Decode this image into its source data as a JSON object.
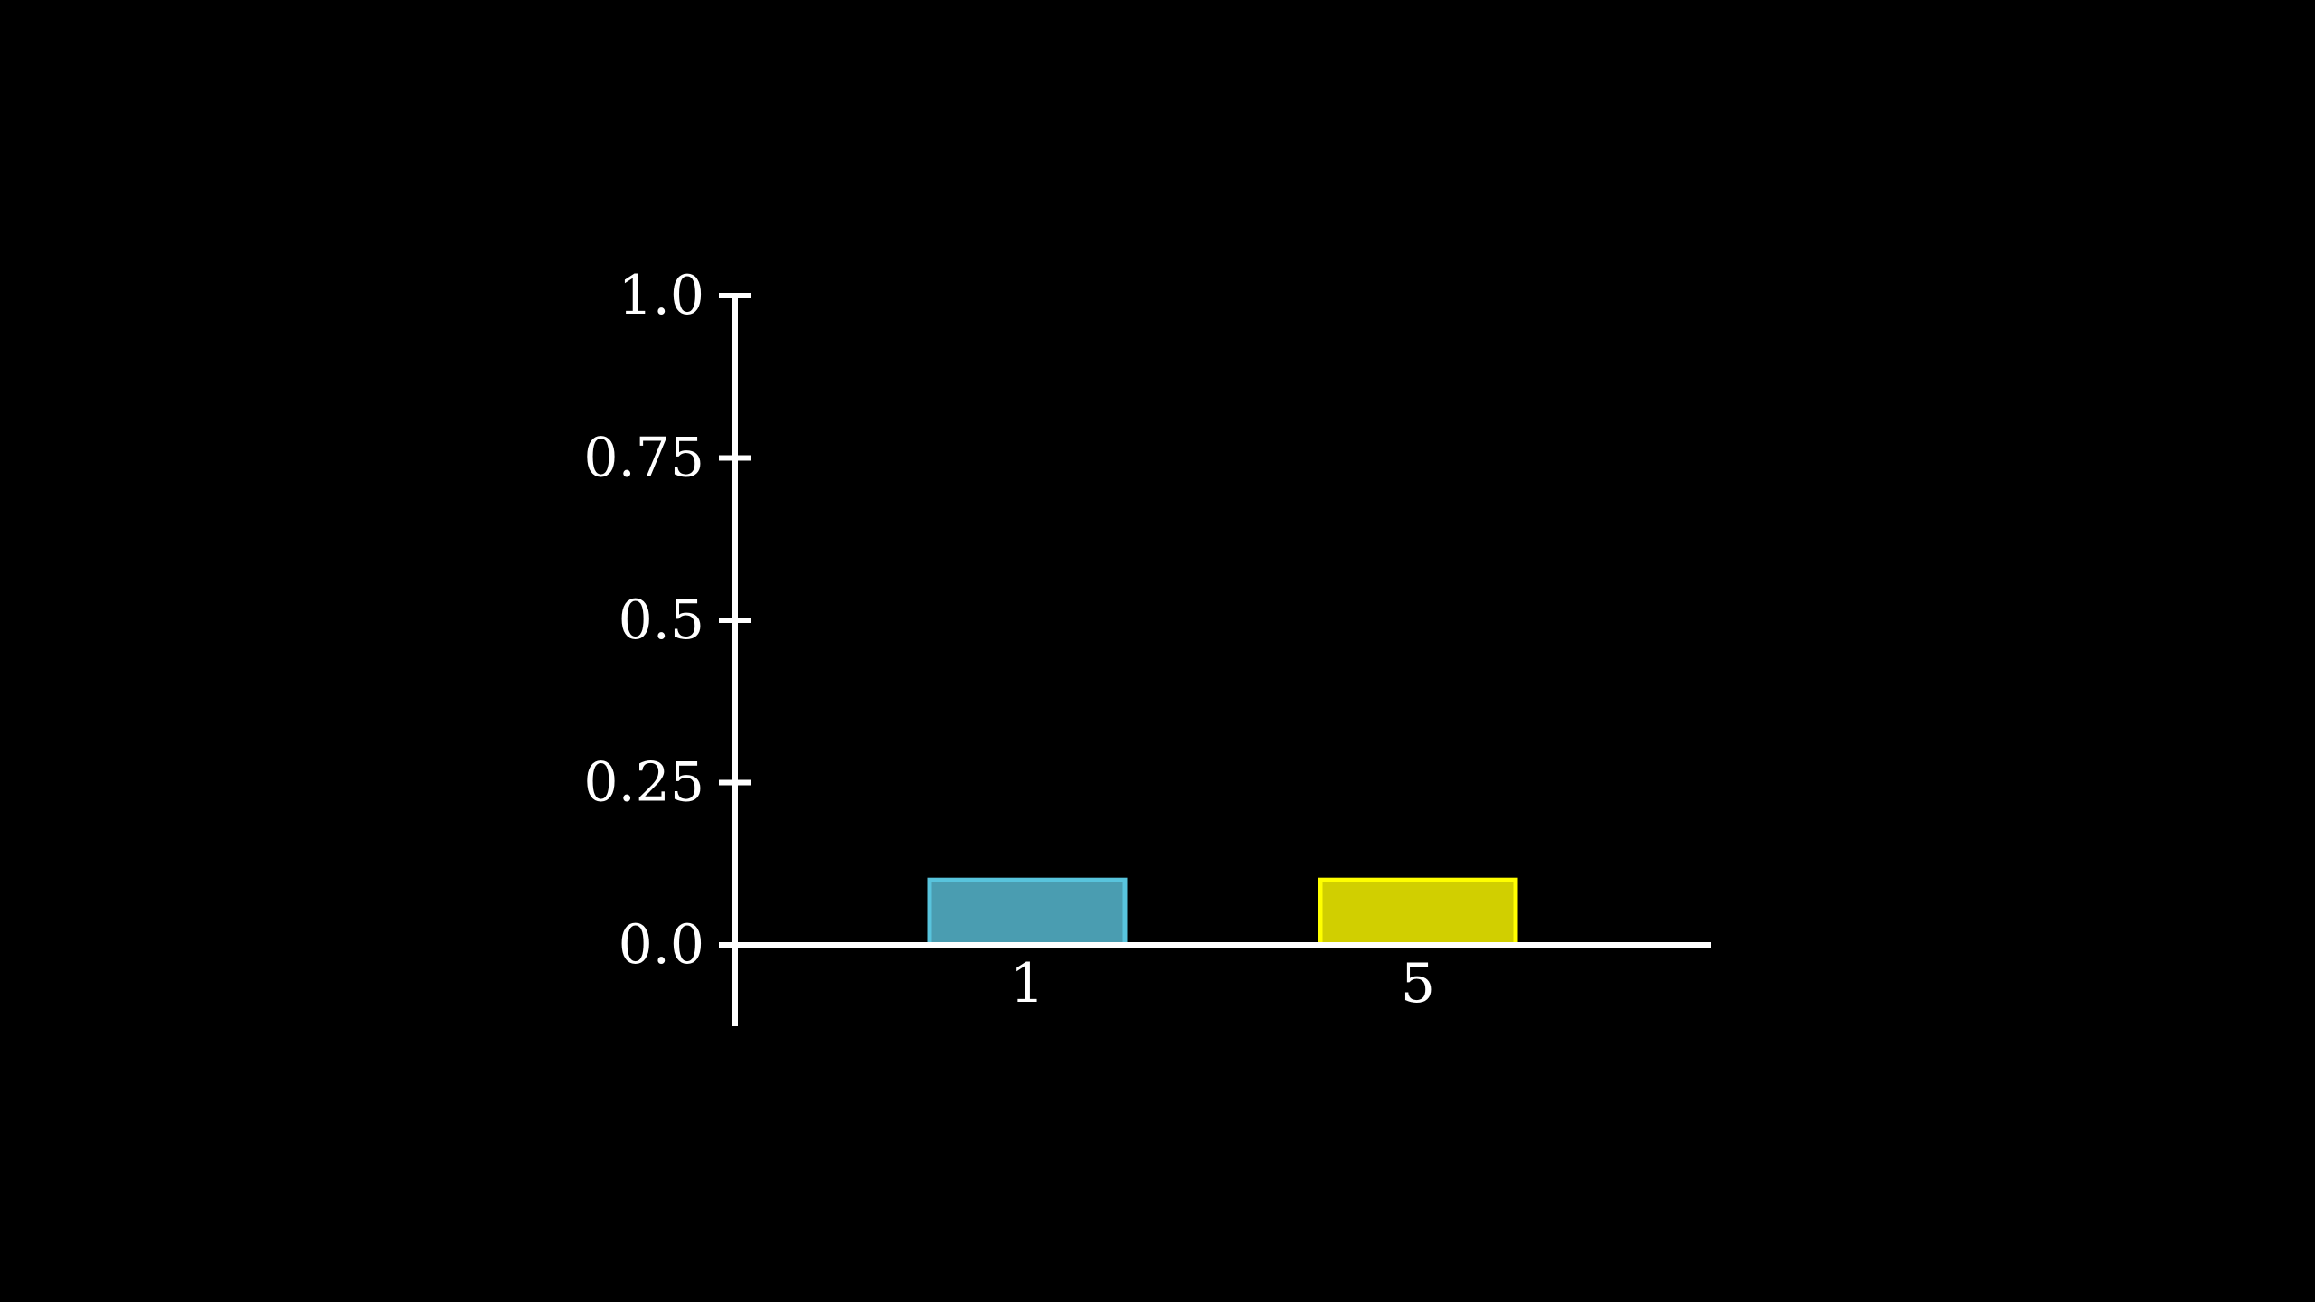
{
  "chart_data": {
    "type": "bar",
    "categories": [
      "1",
      "5"
    ],
    "values": [
      0.1,
      0.1
    ],
    "ylim": [
      -0.125,
      1.0
    ],
    "yticks": [
      0.0,
      0.25,
      0.5,
      0.75,
      1.0
    ],
    "ytick_labels": [
      "0.0",
      "0.25",
      "0.5",
      "0.75",
      "1.0"
    ],
    "grid": false,
    "legend": "none",
    "bar_colors": [
      {
        "fill": "#4a9db1",
        "stroke": "#58c4dd"
      },
      {
        "fill": "#d1cf00",
        "stroke": "#ffff00"
      }
    ],
    "axis_color": "#ffffff",
    "background": "#000000"
  }
}
